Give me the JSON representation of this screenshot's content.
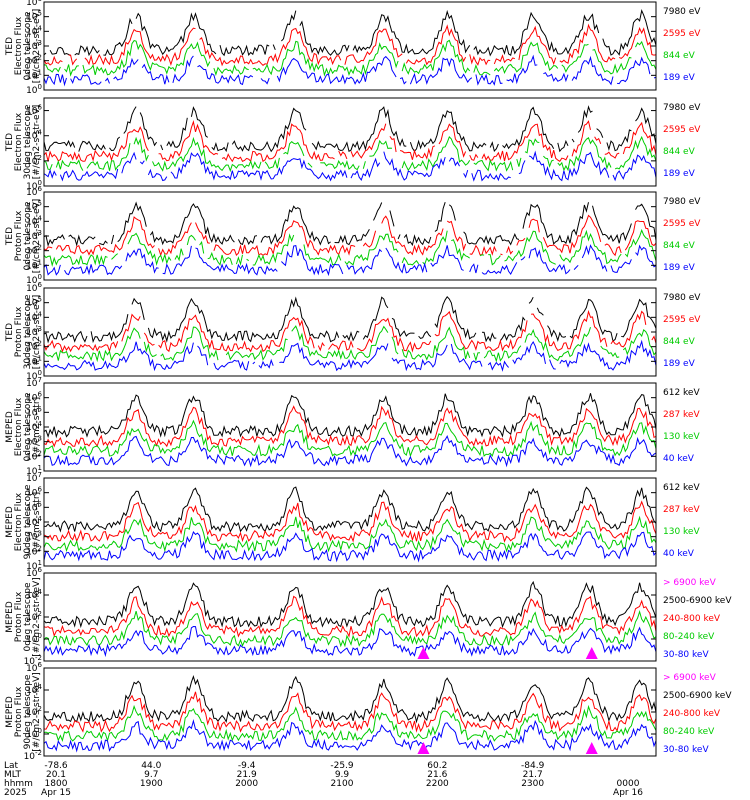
{
  "colors": {
    "black": "#000000",
    "red": "#ff0000",
    "green": "#00cc00",
    "blue": "#0000ff",
    "magenta": "#ff00ff"
  },
  "chart_data": [
    {
      "type": "line",
      "ylabel_lines": [
        "TED",
        "Electron Flux",
        "0deg telescope",
        "[#/cm2-s-str-eV]"
      ],
      "ylog": true,
      "ylim_exp": [
        0,
        6
      ],
      "tick_exps": [
        0,
        1,
        2,
        3,
        4,
        5,
        6
      ],
      "series": [
        {
          "name": "7980 eV",
          "color": "black"
        },
        {
          "name": "2595 eV",
          "color": "red"
        },
        {
          "name": "844 eV",
          "color": "green"
        },
        {
          "name": "189 eV",
          "color": "blue"
        }
      ]
    },
    {
      "type": "line",
      "ylabel_lines": [
        "TED",
        "Electron Flux",
        "30deg telescope",
        "[#/cm2-s-str-eV]"
      ],
      "ylog": true,
      "ylim_exp": [
        0,
        7
      ],
      "tick_exps": [
        0,
        2,
        4,
        6
      ],
      "series": [
        {
          "name": "7980 eV",
          "color": "black"
        },
        {
          "name": "2595 eV",
          "color": "red"
        },
        {
          "name": "844 eV",
          "color": "green"
        },
        {
          "name": "189 eV",
          "color": "blue"
        }
      ]
    },
    {
      "type": "line",
      "ylabel_lines": [
        "TED",
        "Proton Flux",
        "0deg telescope",
        "[#/cm2-s-str-eV]"
      ],
      "ylog": true,
      "ylim_exp": [
        0,
        6
      ],
      "tick_exps": [
        0,
        1,
        2,
        3,
        4,
        5,
        6
      ],
      "series": [
        {
          "name": "7980 eV",
          "color": "black"
        },
        {
          "name": "2595 eV",
          "color": "red"
        },
        {
          "name": "844 eV",
          "color": "green"
        },
        {
          "name": "189 eV",
          "color": "blue"
        }
      ]
    },
    {
      "type": "line",
      "ylabel_lines": [
        "TED",
        "Proton Flux",
        "30deg telescope",
        "[#/cm2-s-str-eV]"
      ],
      "ylog": true,
      "ylim_exp": [
        0,
        6
      ],
      "tick_exps": [
        0,
        1,
        2,
        3,
        4,
        5,
        6
      ],
      "series": [
        {
          "name": "7980 eV",
          "color": "black"
        },
        {
          "name": "2595 eV",
          "color": "red"
        },
        {
          "name": "844 eV",
          "color": "green"
        },
        {
          "name": "189 eV",
          "color": "blue"
        }
      ]
    },
    {
      "type": "line",
      "ylabel_lines": [
        "MEPED",
        "Electron Flux",
        "0deg telescope",
        "[#/cm2-s-str]"
      ],
      "ylog": true,
      "ylim_exp": [
        1,
        7
      ],
      "tick_exps": [
        1,
        2,
        3,
        4,
        5,
        6,
        7
      ],
      "series": [
        {
          "name": "612 keV",
          "color": "black"
        },
        {
          "name": "287 keV",
          "color": "red"
        },
        {
          "name": "130 keV",
          "color": "green"
        },
        {
          "name": "40 keV",
          "color": "blue"
        }
      ]
    },
    {
      "type": "line",
      "ylabel_lines": [
        "MEPED",
        "Electron Flux",
        "90deg telescope",
        "[#/cm2-s-str]"
      ],
      "ylog": true,
      "ylim_exp": [
        1,
        7
      ],
      "tick_exps": [
        1,
        2,
        3,
        4,
        5,
        6,
        7
      ],
      "series": [
        {
          "name": "612 keV",
          "color": "black"
        },
        {
          "name": "287 keV",
          "color": "red"
        },
        {
          "name": "130 keV",
          "color": "green"
        },
        {
          "name": "40 keV",
          "color": "blue"
        }
      ]
    },
    {
      "type": "line",
      "ylabel_lines": [
        "MEPED",
        "Proton Flux",
        "0deg telescope",
        "[#/cm2-s-str-keV]"
      ],
      "ylog": true,
      "ylim_exp": [
        -2,
        6
      ],
      "tick_exps": [
        -2,
        0,
        2,
        4,
        6
      ],
      "series": [
        {
          "name": "> 6900 keV",
          "color": "magenta"
        },
        {
          "name": "2500-6900 keV",
          "color": "black"
        },
        {
          "name": "240-800 keV",
          "color": "red"
        },
        {
          "name": "80-240 keV",
          "color": "green"
        },
        {
          "name": "30-80 keV",
          "color": "blue"
        }
      ]
    },
    {
      "type": "line",
      "ylabel_lines": [
        "MEPED",
        "Proton Flux",
        "90deg telescope",
        "[#/cm2-s-str-keV]"
      ],
      "ylog": true,
      "ylim_exp": [
        -2,
        6
      ],
      "tick_exps": [
        -2,
        0,
        2,
        4,
        6
      ],
      "series": [
        {
          "name": "> 6900 keV",
          "color": "magenta"
        },
        {
          "name": "2500-6900 keV",
          "color": "black"
        },
        {
          "name": "240-800 keV",
          "color": "red"
        },
        {
          "name": "80-240 keV",
          "color": "green"
        },
        {
          "name": "30-80 keV",
          "color": "blue"
        }
      ]
    }
  ],
  "x_axis": {
    "row_labels": [
      "Lat",
      "MLT",
      "hhmm",
      "2025"
    ],
    "ticks": [
      {
        "lat": "-78.6",
        "mlt": "20.1",
        "hhmm": "1800",
        "date": "Apr 15"
      },
      {
        "lat": "44.0",
        "mlt": "9.7",
        "hhmm": "1900",
        "date": ""
      },
      {
        "lat": "-9.4",
        "mlt": "21.9",
        "hhmm": "2000",
        "date": ""
      },
      {
        "lat": "-25.9",
        "mlt": "9.9",
        "hhmm": "2100",
        "date": ""
      },
      {
        "lat": "60.2",
        "mlt": "21.6",
        "hhmm": "2200",
        "date": ""
      },
      {
        "lat": "-84.9",
        "mlt": "21.7",
        "hhmm": "2300",
        "date": ""
      },
      {
        "lat": "",
        "mlt": "",
        "hhmm": "0000",
        "date": "Apr 16"
      }
    ]
  }
}
